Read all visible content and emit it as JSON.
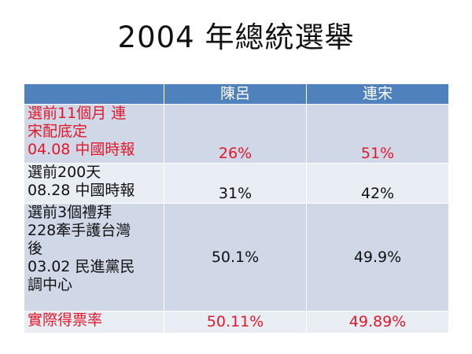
{
  "slide": {
    "title": "2004 年總統選舉"
  },
  "table": {
    "headers": [
      "",
      "陳呂",
      "連宋"
    ],
    "rows": [
      {
        "label": "選前11個月 連\n宋配底定\n04.08 中國時報",
        "chen_lu": "26%",
        "lien_soong": "51%",
        "color": "#e0182a"
      },
      {
        "label": "選前200天\n08.28 中國時報",
        "chen_lu": "31%",
        "lien_soong": "42%",
        "color": "#111111"
      },
      {
        "label": "選前3個禮拜\n228牽手護台灣\n後\n03.02 民進黨民\n調中心",
        "chen_lu": "50.1%",
        "lien_soong": "49.9%",
        "color": "#111111"
      },
      {
        "label": "實際得票率",
        "chen_lu": "50.11%",
        "lien_soong": "49.89%",
        "color": "#e0182a"
      }
    ]
  },
  "colors": {
    "header_bg": "#4f81bd",
    "row_odd_bg": "#d0d8e8",
    "row_even_bg": "#e9edf4",
    "highlight": "#e0182a"
  }
}
